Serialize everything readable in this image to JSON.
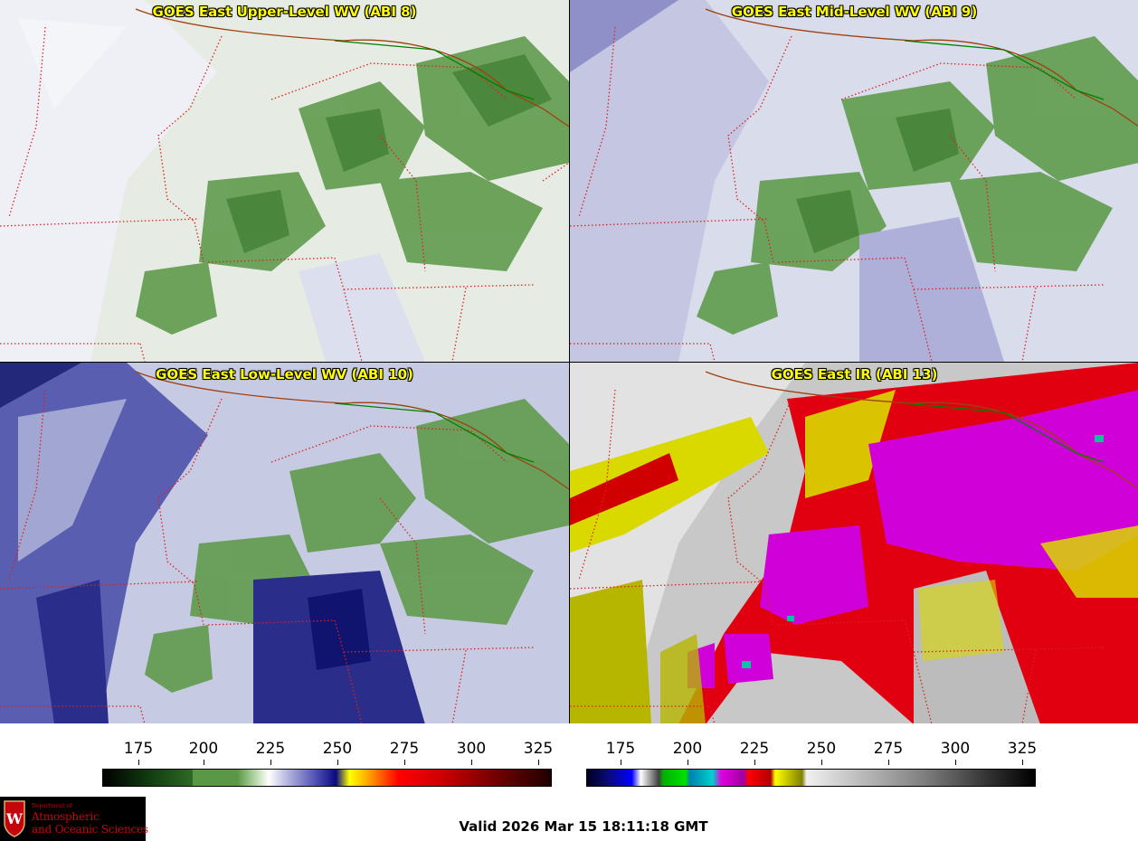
{
  "panels": [
    {
      "title": "GOES East Upper-Level WV (ABI 8)",
      "colormap": "water-vapor",
      "background": "#dfe8dc"
    },
    {
      "title": "GOES East Mid-Level WV (ABI 9)",
      "colormap": "water-vapor",
      "background": "#d4d8e8"
    },
    {
      "title": "GOES East Low-Level WV (ABI 10)",
      "colormap": "water-vapor",
      "background": "#c4c8e0"
    },
    {
      "title": "GOES East IR (ABI 13)",
      "colormap": "infrared",
      "background": "#d8d8d8"
    }
  ],
  "colorbars": {
    "water_vapor": {
      "ticks": [
        "175",
        "200",
        "225",
        "250",
        "275",
        "300",
        "325"
      ],
      "range": [
        162,
        330
      ]
    },
    "infrared": {
      "ticks": [
        "175",
        "200",
        "225",
        "250",
        "275",
        "300",
        "325"
      ],
      "range": [
        162,
        330
      ]
    }
  },
  "logo": {
    "line_small": "Department of",
    "line1": "Atmospheric",
    "line2": "and Oceanic Sciences",
    "crest_letter": "W"
  },
  "valid_time": "Valid 2026 Mar 15 18:11:18 GMT",
  "colors": {
    "state_border": "#dd2020",
    "international_border": "#a04010",
    "land_water_boundary": "#008000",
    "title_text": "#ffff00"
  }
}
